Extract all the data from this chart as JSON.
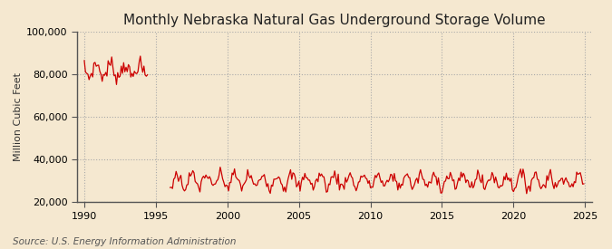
{
  "title": "Monthly Nebraska Natural Gas Underground Storage Volume",
  "ylabel": "Million Cubic Feet",
  "source": "Source: U.S. Energy Information Administration",
  "line_color": "#cc0000",
  "background_color": "#f5e8d0",
  "plot_bg_color": "#f5e8d0",
  "grid_color": "#aaaaaa",
  "xlim": [
    1989.5,
    2025.5
  ],
  "ylim": [
    20000,
    100000
  ],
  "yticks": [
    20000,
    40000,
    60000,
    80000,
    100000
  ],
  "xticks": [
    1990,
    1995,
    2000,
    2005,
    2010,
    2015,
    2020,
    2025
  ],
  "title_fontsize": 11,
  "label_fontsize": 8,
  "source_fontsize": 7.5
}
